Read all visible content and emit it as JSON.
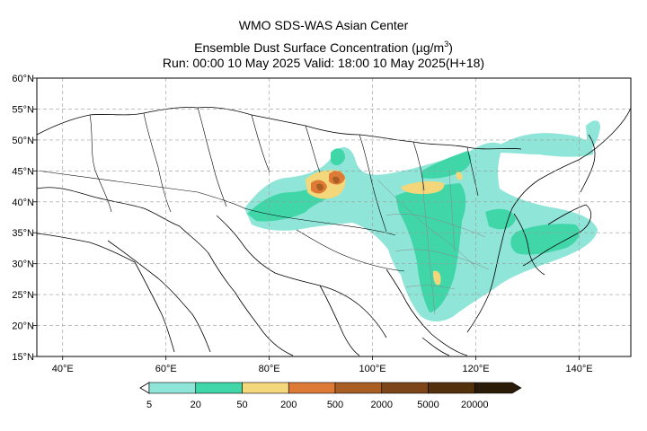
{
  "header": {
    "line1": "WMO SDS-WAS Asian Center",
    "line2_prefix": "Ensemble Dust Surface Concentration (",
    "line2_unit": "µg/m",
    "line2_unit_sup": "3",
    "line2_suffix": ")",
    "line3": "Run: 00:00 10 May 2025     Valid: 18:00 10 May 2025(H+18)"
  },
  "map": {
    "lon_min": 35,
    "lon_max": 150,
    "lat_min": 15,
    "lat_max": 60,
    "lat_ticks": [
      {
        "value": 15,
        "label": "15°N"
      },
      {
        "value": 20,
        "label": "20°N"
      },
      {
        "value": 25,
        "label": "25°N"
      },
      {
        "value": 30,
        "label": "30°N"
      },
      {
        "value": 35,
        "label": "35°N"
      },
      {
        "value": 40,
        "label": "40°N"
      },
      {
        "value": 45,
        "label": "45°N"
      },
      {
        "value": 50,
        "label": "50°N"
      },
      {
        "value": 55,
        "label": "55°N"
      },
      {
        "value": 60,
        "label": "60°N"
      }
    ],
    "lon_ticks": [
      {
        "value": 40,
        "label": "40°E"
      },
      {
        "value": 60,
        "label": "60°E"
      },
      {
        "value": 80,
        "label": "80°E"
      },
      {
        "value": 100,
        "label": "100°E"
      },
      {
        "value": 120,
        "label": "120°E"
      },
      {
        "value": 140,
        "label": "140°E"
      }
    ],
    "grid": "dashed"
  },
  "colorbar": {
    "levels": [
      "5",
      "20",
      "50",
      "200",
      "500",
      "2000",
      "5000",
      "20000"
    ],
    "colors": [
      "#8fe6d8",
      "#40d6a8",
      "#f3d77a",
      "#dc7a36",
      "#a95f23",
      "#7d4519",
      "#53310f",
      "#2a1a08"
    ],
    "extend": "min"
  }
}
